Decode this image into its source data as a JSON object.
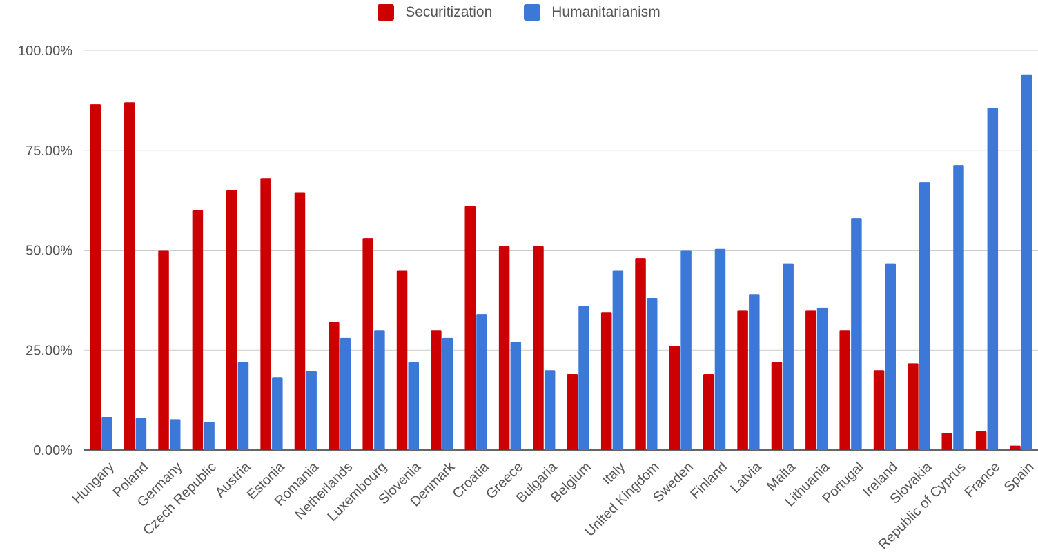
{
  "chart_data": {
    "type": "bar",
    "title": "",
    "xlabel": "",
    "ylabel": "",
    "ylim": [
      0,
      100
    ],
    "yticks": [
      "0.00%",
      "25.00%",
      "50.00%",
      "75.00%",
      "100.00%"
    ],
    "ytick_values": [
      0,
      25,
      50,
      75,
      100
    ],
    "grid": true,
    "legend_position": "top",
    "categories": [
      "Hungary",
      "Poland",
      "Germany",
      "Czech Republic",
      "Austria",
      "Estonia",
      "Romania",
      "Netherlands",
      "Luxembourg",
      "Slovenia",
      "Denmark",
      "Croatia",
      "Greece",
      "Bulgaria",
      "Belgium",
      "Italy",
      "United Kingdom",
      "Sweden",
      "Finland",
      "Latvia",
      "Malta",
      "Lithuania",
      "Portugal",
      "Ireland",
      "Slovakia",
      "Republic of Cyprus",
      "France",
      "Spain"
    ],
    "series": [
      {
        "name": "Securitization",
        "color": "#cc0000",
        "values": [
          86.5,
          87,
          50,
          60,
          65,
          68,
          64.5,
          32,
          53,
          45,
          30,
          61,
          51,
          51,
          19,
          34.5,
          48,
          26,
          19,
          35,
          22,
          35,
          30,
          20,
          21.7,
          4.3,
          4.7,
          1.1
        ]
      },
      {
        "name": "Humanitarianism",
        "color": "#3c78d8",
        "values": [
          8.3,
          8,
          7.7,
          7,
          22,
          18.1,
          19.7,
          28,
          30,
          22,
          28,
          34,
          27,
          20,
          36,
          45,
          38,
          50,
          50.3,
          39,
          46.7,
          35.6,
          58,
          46.7,
          67,
          71.3,
          85.6,
          94
        ]
      }
    ]
  }
}
